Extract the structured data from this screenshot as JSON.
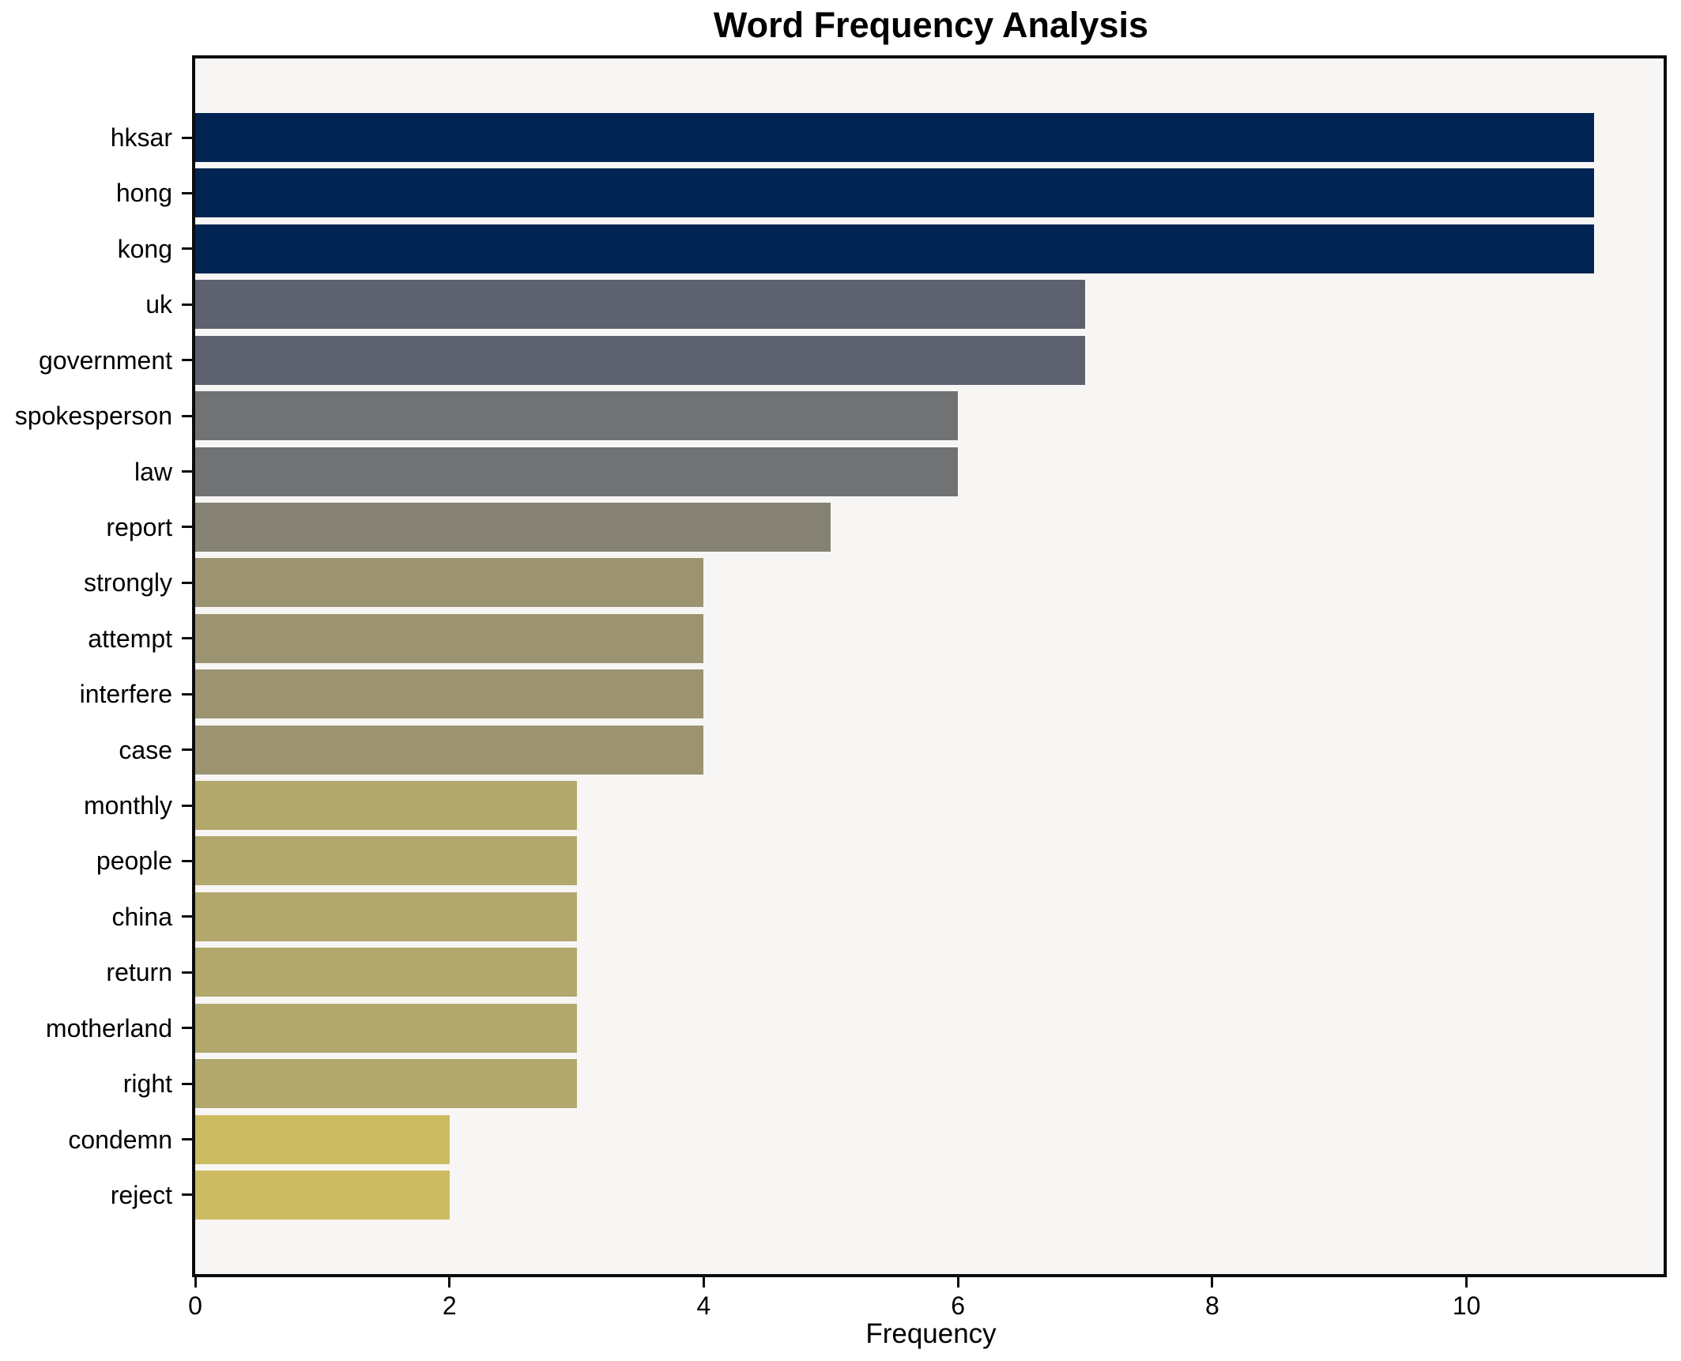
{
  "chart_data": {
    "type": "bar",
    "orientation": "horizontal",
    "title": "Word Frequency Analysis",
    "xlabel": "Frequency",
    "ylabel": "",
    "categories": [
      "hksar",
      "hong",
      "kong",
      "uk",
      "government",
      "spokesperson",
      "law",
      "report",
      "strongly",
      "attempt",
      "interfere",
      "case",
      "monthly",
      "people",
      "china",
      "return",
      "motherland",
      "right",
      "condemn",
      "reject"
    ],
    "values": [
      11,
      11,
      11,
      7,
      7,
      6,
      6,
      5,
      4,
      4,
      4,
      4,
      3,
      3,
      3,
      3,
      3,
      3,
      2,
      2
    ],
    "bar_colors": [
      "#022453",
      "#022453",
      "#022453",
      "#5e616e",
      "#5e616e",
      "#717274",
      "#717274",
      "#858273",
      "#9c9371",
      "#9c9371",
      "#9c9371",
      "#9c9371",
      "#b2a76c",
      "#b2a76c",
      "#b2a76c",
      "#b2a76c",
      "#b2a76c",
      "#b2a76c",
      "#cdbb62",
      "#cdbb62"
    ],
    "xticks": [
      0,
      2,
      4,
      6,
      8,
      10
    ],
    "xlim": [
      0,
      11.55
    ],
    "grid": false,
    "legend": false,
    "plot_background": "#f7f6f5",
    "figure_background": "#ffffff",
    "spine_color": "#0c0c0c"
  }
}
